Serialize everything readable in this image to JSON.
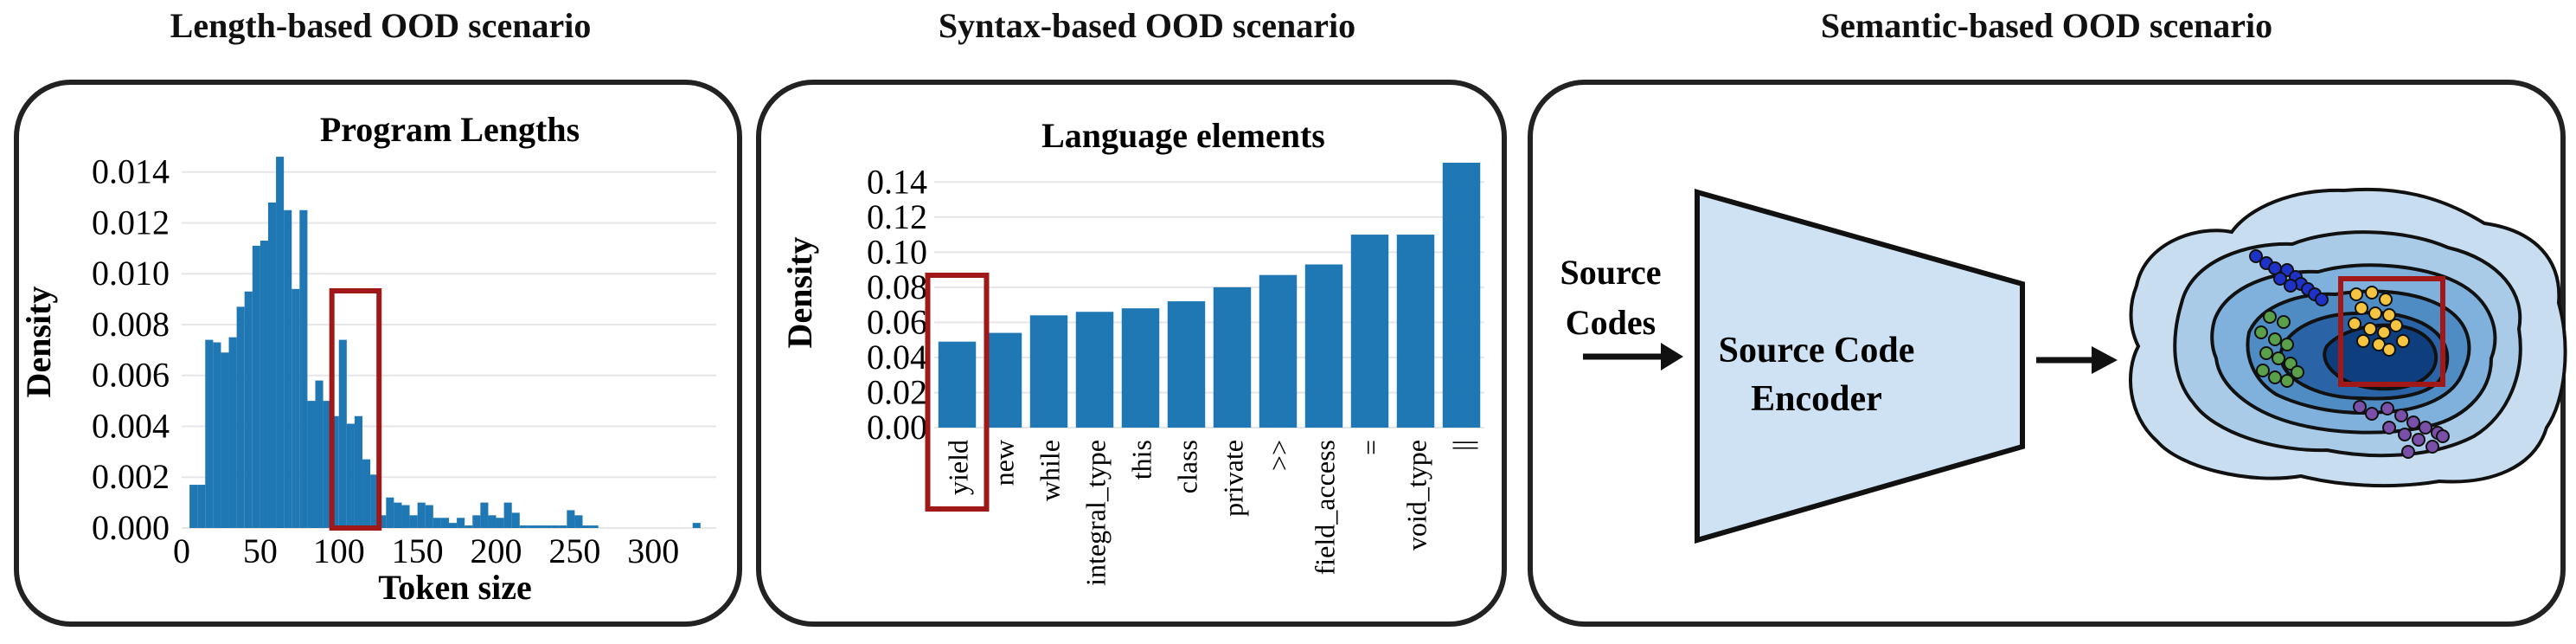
{
  "panels": {
    "length": {
      "title": "Length-based OOD scenario"
    },
    "syntax": {
      "title": "Syntax-based OOD scenario"
    },
    "semantic": {
      "title": "Semantic-based OOD scenario"
    }
  },
  "chart_data": [
    {
      "type": "bar",
      "title": "Program Lengths",
      "xlabel": "Token size",
      "ylabel": "Density",
      "xlim": [
        0,
        340
      ],
      "ylim": [
        0,
        0.0145
      ],
      "xticks": [
        "0",
        "50",
        "100",
        "150",
        "200",
        "250",
        "300"
      ],
      "xtick_values": [
        0,
        50,
        100,
        150,
        200,
        250,
        300
      ],
      "yticks": [
        "0.000",
        "0.002",
        "0.004",
        "0.006",
        "0.008",
        "0.010",
        "0.012",
        "0.014"
      ],
      "ytick_values": [
        0,
        0.002,
        0.004,
        0.006,
        0.008,
        0.01,
        0.012,
        0.014
      ],
      "bin_width": 5,
      "bin_starts": [
        5,
        10,
        15,
        20,
        25,
        30,
        35,
        40,
        45,
        50,
        55,
        60,
        65,
        70,
        75,
        80,
        85,
        90,
        95,
        100,
        105,
        110,
        115,
        120,
        125,
        130,
        135,
        140,
        145,
        150,
        155,
        160,
        165,
        170,
        175,
        180,
        185,
        190,
        195,
        200,
        205,
        210,
        215,
        220,
        225,
        230,
        235,
        240,
        245,
        250,
        255,
        260,
        265,
        270,
        275,
        280,
        285,
        290,
        295,
        300,
        305,
        310,
        315,
        320,
        325,
        330
      ],
      "values": [
        0.0017,
        0.0017,
        0.0074,
        0.0073,
        0.0069,
        0.0075,
        0.0087,
        0.0093,
        0.0111,
        0.0113,
        0.0128,
        0.0146,
        0.0125,
        0.0094,
        0.0125,
        0.005,
        0.0058,
        0.005,
        0.0044,
        0.0074,
        0.0041,
        0.0044,
        0.0027,
        0.0021,
        0.0005,
        0.0012,
        0.001,
        0.0009,
        0.0005,
        0.001,
        0.0009,
        0.0004,
        0.0004,
        0.0002,
        0.0004,
        0.0001,
        0.0005,
        0.001,
        0.0005,
        0.0004,
        0.001,
        0.0006,
        0.0001,
        0.0001,
        0.0001,
        0.0001,
        0.0001,
        0.0001,
        0.0007,
        0.0005,
        0.0001,
        0.0001,
        0.0,
        0.0,
        0.0,
        0.0,
        0.0,
        0.0,
        0.0,
        0.0,
        0.0,
        0.0,
        0.0,
        0.0,
        0.0002,
        0.0
      ],
      "highlight_range": [
        95,
        125
      ],
      "bar_color": "#1f77b4",
      "highlight_color": "#a01818",
      "grid": true
    },
    {
      "type": "bar",
      "title": "Language elements",
      "xlabel": "",
      "ylabel": "Density",
      "ylim": [
        0,
        0.15
      ],
      "yticks": [
        "0.00",
        "0.02",
        "0.04",
        "0.06",
        "0.08",
        "0.10",
        "0.12",
        "0.14"
      ],
      "ytick_values": [
        0,
        0.02,
        0.04,
        0.06,
        0.08,
        0.1,
        0.12,
        0.14
      ],
      "categories": [
        "yield",
        "new",
        "while",
        "integral_type",
        "this",
        "class",
        "private",
        ">>",
        "field_access",
        "=",
        "void_type",
        "||"
      ],
      "values": [
        0.049,
        0.054,
        0.064,
        0.066,
        0.068,
        0.072,
        0.08,
        0.087,
        0.093,
        0.11,
        0.11,
        0.151
      ],
      "highlight_category": "yield",
      "bar_color": "#1f77b4",
      "highlight_color": "#a01818",
      "grid": true
    }
  ],
  "diagram": {
    "input_label_line1": "Source",
    "input_label_line2": "Codes",
    "encoder_line1": "Source Code",
    "encoder_line2": "Encoder",
    "encoder_fill": "#cfe2f3",
    "contour_colors": [
      "#c9ddf0",
      "#a9cbe8",
      "#7fb1dc",
      "#4f8cc4",
      "#2b64a6",
      "#0f3e7e",
      "#082a5c"
    ],
    "point_colors": {
      "blue": "#1f32c8",
      "green": "#5aa04a",
      "yellow": "#f5c542",
      "purple": "#7a4fa8"
    },
    "highlight_color": "#a01818"
  }
}
